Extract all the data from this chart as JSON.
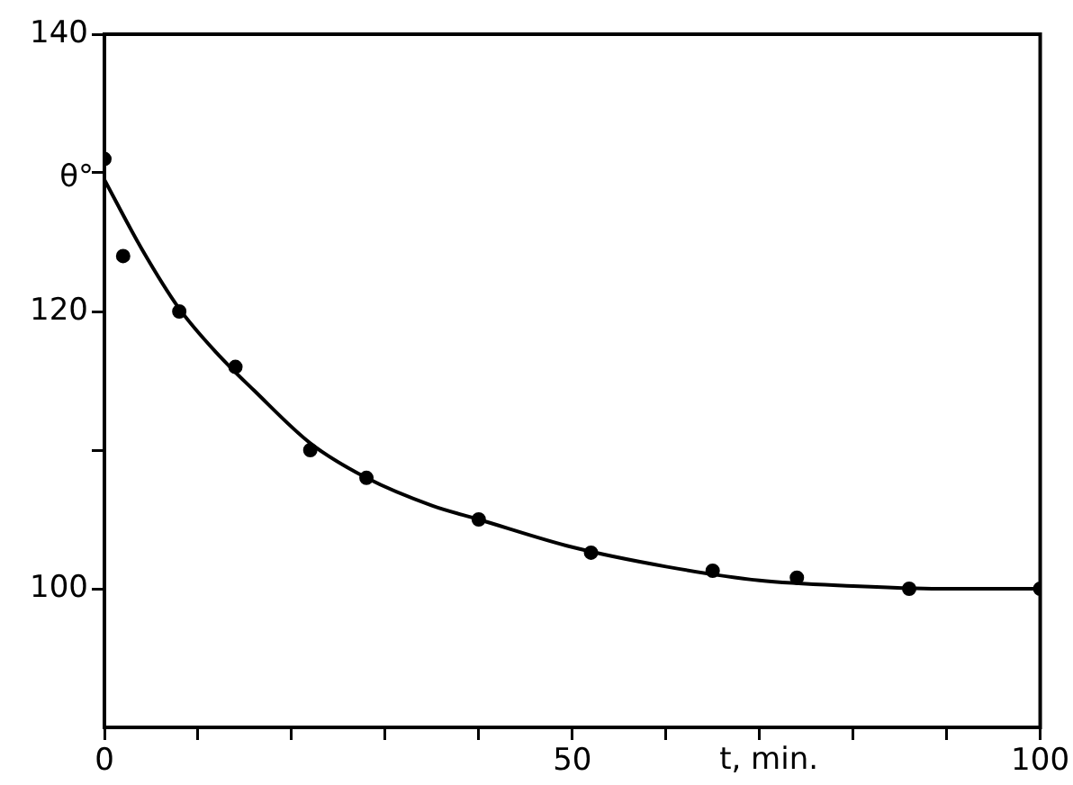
{
  "chart_data": {
    "type": "scatter",
    "xlabel": "t, min.",
    "ylabel": "θ°",
    "xlim": [
      0,
      100
    ],
    "xticks": [
      0,
      {
        "value": 10,
        "label": null
      },
      {
        "value": 20,
        "label": null
      },
      {
        "value": 30,
        "label": null
      },
      {
        "value": 40,
        "label": null
      },
      50,
      {
        "value": 60,
        "label": null
      },
      {
        "value": 70,
        "label": null
      },
      {
        "value": 80,
        "label": null
      },
      {
        "value": 90,
        "label": null
      },
      100
    ],
    "ylim": [
      90,
      140
    ],
    "yticks": [
      100,
      {
        "value": 110,
        "label": null
      },
      120,
      {
        "value": 130,
        "label": null
      },
      140
    ],
    "grid": false,
    "legend": false,
    "series": [
      {
        "marker": "circle",
        "color": "#000000",
        "x": [
          0,
          2,
          8,
          14,
          22,
          28,
          40,
          52,
          65,
          74,
          86,
          100
        ],
        "values": [
          131,
          124,
          120,
          116,
          110,
          108,
          105,
          102.6,
          101.3,
          100.8,
          100,
          100
        ]
      },
      {
        "type": "line",
        "marker": "none",
        "line_style": "solid",
        "color": "#000000",
        "x": [
          0,
          4,
          8,
          12,
          16,
          22,
          28,
          35,
          40,
          50,
          60,
          70,
          80,
          90,
          100
        ],
        "values": [
          129.5,
          124.5,
          120.2,
          117,
          114.3,
          110.5,
          108,
          106,
          105,
          103,
          101.6,
          100.6,
          100.2,
          100,
          100
        ]
      }
    ]
  }
}
